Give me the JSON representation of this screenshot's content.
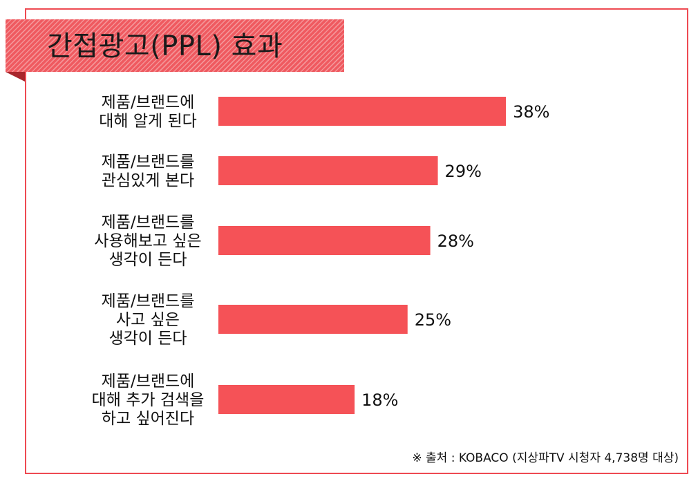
{
  "title": "간접광고(PPL) 효과",
  "source_note": "※ 출처 : KOBACO (지상파TV 시청자 4,738명 대상)",
  "colors": {
    "bar": "#f55257",
    "frame": "#ee4a52",
    "banner": "#ef5a60"
  },
  "chart_data": {
    "type": "bar",
    "orientation": "horizontal",
    "categories": [
      [
        "제품/브랜드에",
        "대해 알게 된다"
      ],
      [
        "제품/브랜드를",
        "관심있게 본다"
      ],
      [
        "제품/브랜드를",
        "사용해보고 싶은",
        "생각이 든다"
      ],
      [
        "제품/브랜드를",
        "사고 싶은",
        "생각이 든다"
      ],
      [
        "제품/브랜드에",
        "대해 추가 검색을",
        "하고 싶어진다"
      ]
    ],
    "values": [
      38,
      29,
      28,
      25,
      18
    ],
    "value_labels": [
      "38%",
      "29%",
      "28%",
      "25%",
      "18%"
    ],
    "unit": "%",
    "xlim": [
      0,
      40
    ],
    "grid": false,
    "legend": "none"
  }
}
